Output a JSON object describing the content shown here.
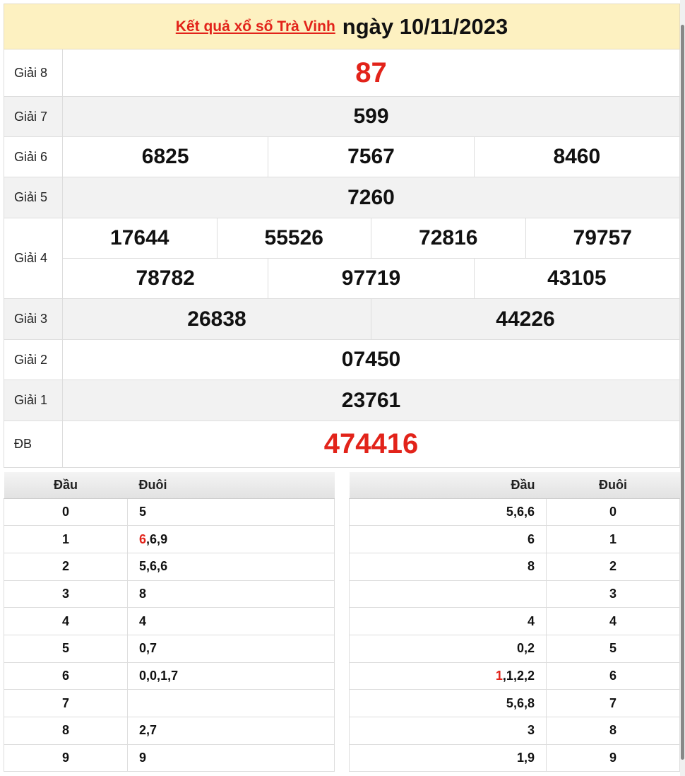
{
  "header": {
    "link": "Kết quả xổ số Trà Vinh",
    "date": "ngày 10/11/2023"
  },
  "prizes": [
    {
      "label": "Giải 8",
      "lines": [
        [
          "87"
        ]
      ],
      "red": true
    },
    {
      "label": "Giải 7",
      "lines": [
        [
          "599"
        ]
      ]
    },
    {
      "label": "Giải 6",
      "lines": [
        [
          "6825",
          "7567",
          "8460"
        ]
      ]
    },
    {
      "label": "Giải 5",
      "lines": [
        [
          "7260"
        ]
      ]
    },
    {
      "label": "Giải 4",
      "lines": [
        [
          "17644",
          "55526",
          "72816",
          "79757"
        ],
        [
          "78782",
          "97719",
          "43105"
        ]
      ]
    },
    {
      "label": "Giải 3",
      "lines": [
        [
          "26838",
          "44226"
        ]
      ]
    },
    {
      "label": "Giải 2",
      "lines": [
        [
          "07450"
        ]
      ]
    },
    {
      "label": "Giải 1",
      "lines": [
        [
          "23761"
        ]
      ]
    },
    {
      "label": "ĐB",
      "lines": [
        [
          "474416"
        ]
      ],
      "red": true
    }
  ],
  "loto_left": {
    "col1": "Đầu",
    "col2": "Đuôi",
    "rows": [
      {
        "k": "0",
        "v": [
          [
            "5"
          ]
        ]
      },
      {
        "k": "1",
        "v": [
          [
            "6",
            true
          ],
          [
            "6"
          ],
          [
            "9"
          ]
        ]
      },
      {
        "k": "2",
        "v": [
          [
            "5"
          ],
          [
            "6"
          ],
          [
            "6"
          ]
        ]
      },
      {
        "k": "3",
        "v": [
          [
            "8"
          ]
        ]
      },
      {
        "k": "4",
        "v": [
          [
            "4"
          ]
        ]
      },
      {
        "k": "5",
        "v": [
          [
            "0"
          ],
          [
            "7"
          ]
        ]
      },
      {
        "k": "6",
        "v": [
          [
            "0"
          ],
          [
            "0"
          ],
          [
            "1"
          ],
          [
            "7"
          ]
        ]
      },
      {
        "k": "7",
        "v": []
      },
      {
        "k": "8",
        "v": [
          [
            "2"
          ],
          [
            "7"
          ]
        ]
      },
      {
        "k": "9",
        "v": [
          [
            "9"
          ]
        ]
      }
    ]
  },
  "loto_right": {
    "col1": "Đầu",
    "col2": "Đuôi",
    "rows": [
      {
        "k": "0",
        "v": [
          [
            "5"
          ],
          [
            "6"
          ],
          [
            "6"
          ]
        ]
      },
      {
        "k": "1",
        "v": [
          [
            "6"
          ]
        ]
      },
      {
        "k": "2",
        "v": [
          [
            "8"
          ]
        ]
      },
      {
        "k": "3",
        "v": []
      },
      {
        "k": "4",
        "v": [
          [
            "4"
          ]
        ]
      },
      {
        "k": "5",
        "v": [
          [
            "0"
          ],
          [
            "2"
          ]
        ]
      },
      {
        "k": "6",
        "v": [
          [
            "1",
            true
          ],
          [
            "1"
          ],
          [
            "2"
          ],
          [
            "2"
          ]
        ]
      },
      {
        "k": "7",
        "v": [
          [
            "5"
          ],
          [
            "6"
          ],
          [
            "8"
          ]
        ]
      },
      {
        "k": "8",
        "v": [
          [
            "3"
          ]
        ]
      },
      {
        "k": "9",
        "v": [
          [
            "1"
          ],
          [
            "9"
          ]
        ]
      }
    ]
  },
  "colors": {
    "accent": "#e2231a",
    "header_bg": "#fdf1c1",
    "alt_row": "#f2f2f2"
  }
}
